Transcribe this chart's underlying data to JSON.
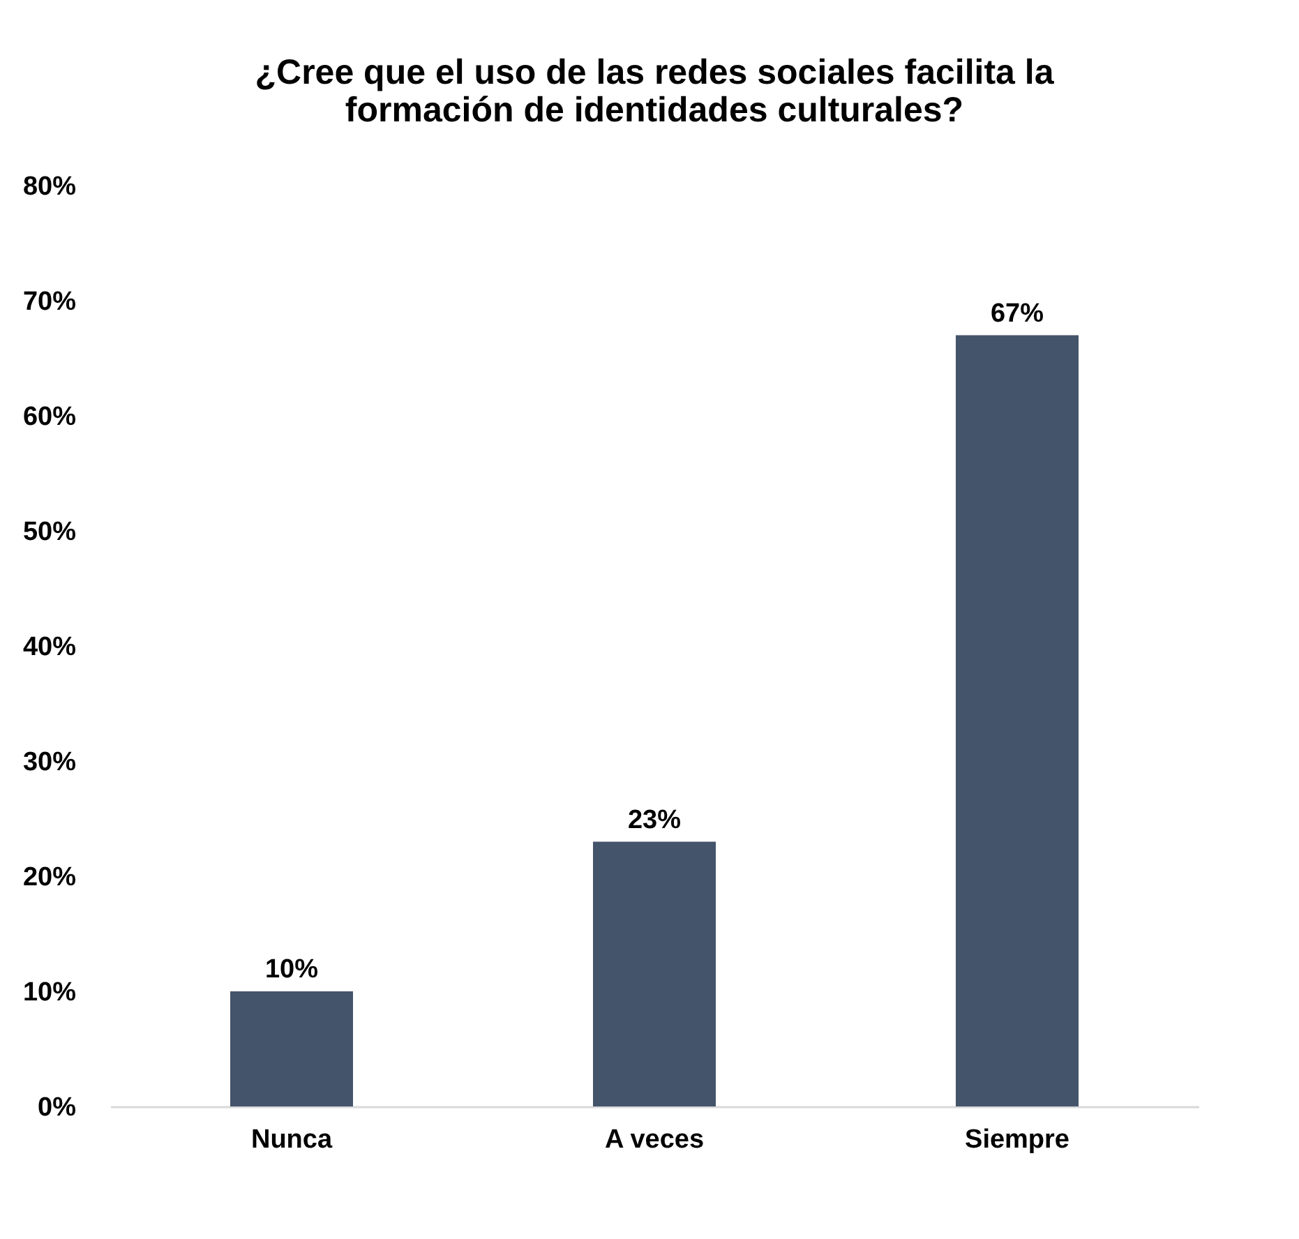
{
  "chart_data": {
    "type": "bar",
    "title": "¿Cree que el uso de las redes sociales facilita la\nformación de identidades culturales?",
    "categories": [
      "Nunca",
      "A veces",
      "Siempre"
    ],
    "values": [
      10,
      23,
      67
    ],
    "color": "#44546a",
    "value_labels": [
      "10%",
      "23%",
      "67%"
    ],
    "ylim": [
      0,
      80
    ],
    "yticks": [
      {
        "value": 0,
        "label": "0%"
      },
      {
        "value": 10,
        "label": "10%"
      },
      {
        "value": 20,
        "label": "20%"
      },
      {
        "value": 30,
        "label": "30%"
      },
      {
        "value": 40,
        "label": "40%"
      },
      {
        "value": 50,
        "label": "50%"
      },
      {
        "value": 60,
        "label": "60%"
      },
      {
        "value": 70,
        "label": "70%"
      },
      {
        "value": 80,
        "label": "80%"
      }
    ],
    "grid": false
  }
}
